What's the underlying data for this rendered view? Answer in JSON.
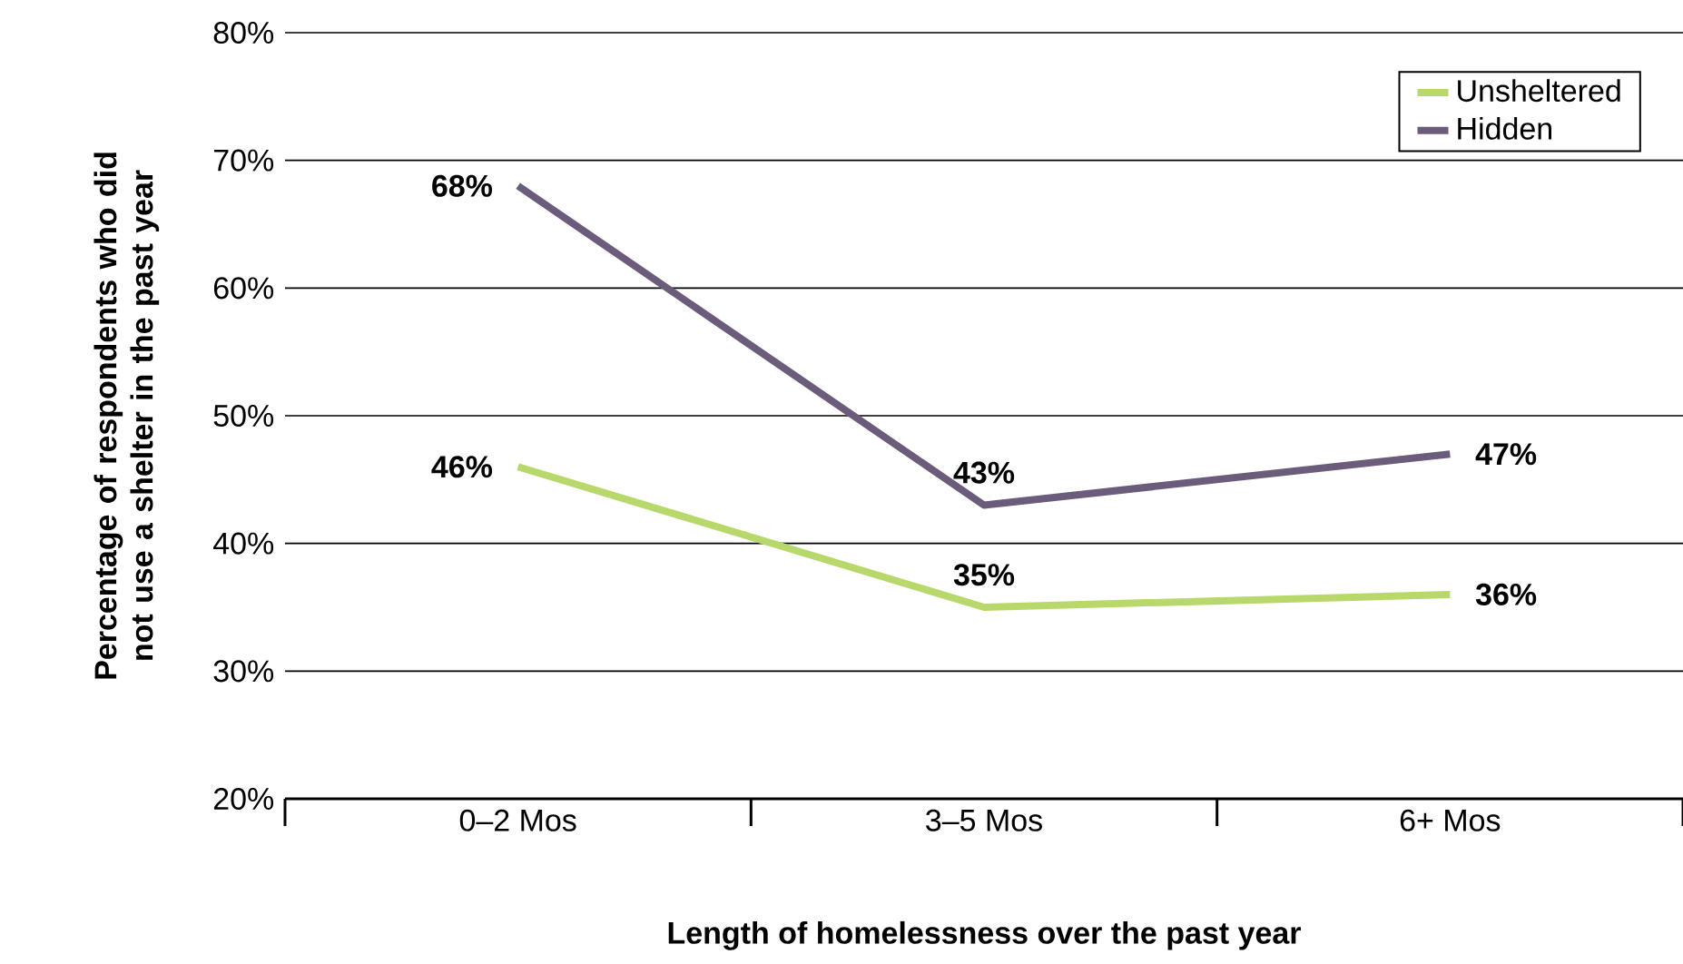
{
  "chart_data": {
    "type": "line",
    "xlabel": "Length of homelessness over the past year",
    "ylabel": "Percentage of respondents who did not use a shelter in the past year",
    "categories": [
      "0–2 Mos",
      "3–5 Mos",
      "6+ Mos"
    ],
    "series": [
      {
        "name": "Unsheltered",
        "color": "#b8d86c",
        "values": [
          46,
          35,
          36
        ],
        "value_labels": [
          "46%",
          "35%",
          "36%"
        ]
      },
      {
        "name": "Hidden",
        "color": "#6b5c7c",
        "values": [
          68,
          43,
          47
        ],
        "value_labels": [
          "68%",
          "43%",
          "47%"
        ]
      }
    ],
    "ylim": [
      20,
      80
    ],
    "yticks": [
      {
        "value": 20,
        "label": "20%"
      },
      {
        "value": 30,
        "label": "30%"
      },
      {
        "value": 40,
        "label": "40%"
      },
      {
        "value": 50,
        "label": "50%"
      },
      {
        "value": 60,
        "label": "60%"
      },
      {
        "value": 70,
        "label": "70%"
      },
      {
        "value": 80,
        "label": "80%"
      }
    ],
    "grid": "y",
    "legend": "top right",
    "marker": "none",
    "line_style": "solid"
  }
}
